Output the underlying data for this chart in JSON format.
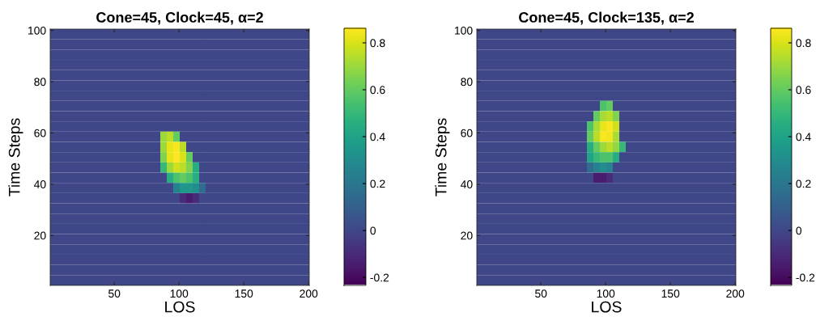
{
  "chart_data": [
    {
      "type": "heatmap",
      "title": "Cone=45, Clock=45, α=2",
      "xlabel": "LOS",
      "ylabel": "Time Steps",
      "xlim": [
        0.5,
        200.5
      ],
      "ylim": [
        0.5,
        100.5
      ],
      "xticks": [
        50,
        100,
        150,
        200
      ],
      "yticks": [
        20,
        40,
        60,
        80,
        100
      ],
      "clim": [
        -0.234,
        0.862
      ],
      "cticks": [
        -0.2,
        0,
        0.2,
        0.4,
        0.6,
        0.8
      ],
      "cells": [
        [
          0,
          0,
          0,
          0,
          0,
          0,
          0,
          0,
          0,
          0,
          0,
          0,
          0,
          0,
          0,
          0,
          0,
          0,
          0,
          0,
          0,
          0,
          0,
          0,
          0,
          0,
          0,
          0,
          0,
          0,
          0,
          0,
          0,
          0,
          0,
          0,
          0,
          0,
          0,
          0
        ],
        [
          0,
          0,
          0,
          0,
          0,
          0,
          0,
          0,
          0,
          0,
          0,
          0,
          0,
          0,
          0,
          0,
          0,
          0,
          0,
          0,
          0,
          0,
          0,
          0,
          0,
          0,
          0,
          0,
          0,
          0,
          0,
          0,
          0,
          0,
          0,
          0,
          0,
          0,
          0,
          0
        ],
        [
          0,
          0,
          0,
          0,
          0,
          0,
          0,
          0,
          0,
          0,
          0,
          0,
          0,
          0,
          0,
          0,
          0,
          0,
          0,
          0,
          0,
          0,
          0,
          0,
          0,
          0,
          0,
          0,
          0,
          0,
          0,
          0,
          0,
          0,
          0,
          0,
          0,
          0,
          0,
          0
        ],
        [
          0,
          0,
          0,
          0,
          0,
          0,
          0,
          0,
          0,
          0,
          0,
          0,
          0,
          0,
          0,
          0,
          0,
          0,
          0,
          0,
          0,
          0,
          0,
          0,
          0,
          0,
          0,
          0,
          0,
          0,
          0,
          0,
          0,
          0,
          0,
          0,
          0,
          0,
          0,
          0
        ],
        [
          0,
          0,
          0,
          0,
          0,
          0,
          0,
          0,
          0,
          0,
          0,
          0,
          0,
          0,
          0,
          0,
          0,
          0,
          0,
          0,
          0,
          0,
          0,
          0,
          0,
          0,
          0,
          0,
          0,
          0,
          0,
          0,
          0,
          0,
          0,
          0,
          0,
          0,
          0,
          0
        ],
        [
          0,
          0,
          0,
          0,
          0,
          0,
          0,
          0,
          0,
          0,
          0,
          0,
          0,
          0,
          0,
          0,
          0,
          0,
          0,
          0,
          0,
          0,
          0,
          0,
          0,
          0,
          0,
          0,
          0,
          0,
          0,
          0,
          0,
          0,
          0,
          0,
          0,
          0,
          0,
          0
        ],
        [
          0,
          0,
          0,
          0,
          0,
          0,
          0,
          0,
          0,
          0,
          0,
          0,
          0,
          0,
          0,
          0,
          0,
          0,
          0,
          0,
          0,
          0,
          0,
          0,
          0,
          0,
          0,
          0,
          0,
          0,
          0,
          0,
          0,
          0,
          0,
          0,
          0,
          0,
          0,
          0
        ],
        [
          0,
          0,
          0,
          0,
          0,
          0,
          0,
          0,
          0,
          0,
          0,
          0,
          0,
          0,
          0,
          0,
          0,
          0,
          0,
          0,
          0,
          0,
          0,
          0,
          0,
          0,
          0,
          0,
          0,
          0,
          0,
          0,
          0,
          0,
          0,
          0,
          0,
          0,
          0,
          0
        ],
        [
          0,
          0,
          0,
          0,
          0,
          0,
          0,
          0,
          0,
          0,
          0,
          0,
          0,
          0,
          0,
          0,
          0,
          0,
          0,
          0,
          0,
          0,
          0,
          0,
          0,
          0,
          0,
          0,
          0,
          0,
          0,
          0,
          0,
          0,
          0,
          0,
          0,
          0,
          0,
          0
        ],
        [
          0,
          0,
          0,
          0,
          0,
          0,
          0,
          0,
          0,
          0,
          0,
          0,
          0,
          0,
          0,
          0,
          0,
          0,
          0,
          0,
          0,
          0,
          0,
          0,
          0,
          0,
          0,
          0,
          0,
          0,
          0,
          0,
          0,
          0,
          0,
          0,
          0,
          0,
          0,
          0
        ],
        [
          0,
          0,
          0,
          0,
          0,
          0,
          0,
          0,
          0,
          0,
          0,
          0,
          0,
          0,
          0,
          0,
          0,
          0.7,
          0.75,
          0.6,
          0,
          0,
          0,
          0,
          0,
          0,
          0,
          0,
          0,
          0,
          0,
          0,
          0,
          0,
          0,
          0,
          0,
          0,
          0,
          0
        ],
        [
          0,
          0,
          0,
          0,
          0,
          0,
          0,
          0,
          0,
          0,
          0,
          0,
          0,
          0,
          0,
          0,
          0,
          0.7,
          0.82,
          0.85,
          0.75,
          0,
          0,
          0,
          0,
          0,
          0,
          0,
          0,
          0,
          0,
          0,
          0,
          0,
          0,
          0,
          0,
          0,
          0,
          0
        ],
        [
          0,
          0,
          0,
          0,
          0,
          0,
          0,
          0,
          0,
          0,
          0,
          0,
          0,
          0,
          0,
          0,
          0,
          0.65,
          0.82,
          0.86,
          0.8,
          0.6,
          0,
          0,
          0,
          0,
          0,
          0,
          0,
          0,
          0,
          0,
          0,
          0,
          0,
          0,
          0,
          0,
          0,
          0
        ],
        [
          0,
          0,
          0,
          0,
          0,
          0,
          0,
          0,
          0,
          0,
          0,
          0,
          0,
          0,
          0,
          0,
          0,
          0.5,
          0.7,
          0.78,
          0.75,
          0.65,
          0.45,
          0,
          0,
          0,
          0,
          0,
          0,
          0,
          0,
          0,
          0,
          0,
          0,
          0,
          0,
          0,
          0,
          0
        ],
        [
          0,
          0,
          0,
          0,
          0,
          0,
          0,
          0,
          0,
          0,
          0,
          0,
          0,
          0,
          0,
          0,
          0,
          0,
          0.45,
          0.55,
          0.6,
          0.55,
          0.45,
          0,
          0,
          0,
          0,
          0,
          0,
          0,
          0,
          0,
          0,
          0,
          0,
          0,
          0,
          0,
          0,
          0
        ],
        [
          0,
          0,
          0,
          0,
          0,
          0,
          0,
          0,
          0,
          0,
          0,
          0,
          0,
          0,
          0,
          0,
          0,
          0,
          0,
          0.25,
          0.35,
          0.35,
          0.3,
          0.15,
          0,
          0,
          0,
          0,
          0,
          0,
          0,
          0,
          0,
          0,
          0,
          0,
          0,
          0,
          0,
          0
        ],
        [
          0,
          0,
          0,
          0,
          0,
          0,
          0,
          0,
          0,
          0,
          0,
          0,
          0,
          0,
          0,
          0,
          0,
          0,
          0,
          0,
          -0.1,
          -0.15,
          -0.1,
          0,
          0,
          0,
          0,
          0,
          0,
          0,
          0,
          0,
          0,
          0,
          0,
          0,
          0,
          0,
          0,
          0
        ],
        [
          0,
          0,
          0,
          0,
          0,
          0,
          0,
          0,
          0,
          0,
          0,
          0,
          0,
          0,
          0,
          0,
          0,
          0,
          0,
          0,
          0,
          0,
          0,
          0,
          0,
          0,
          0,
          0,
          0,
          0,
          0,
          0,
          0,
          0,
          0,
          0,
          0,
          0,
          0,
          0
        ],
        [
          0,
          0,
          0,
          0,
          0,
          0,
          0,
          0,
          0,
          0,
          0,
          0,
          0,
          0,
          0,
          0,
          0,
          0,
          0,
          0,
          0,
          0,
          0,
          0,
          0,
          0,
          0,
          0,
          0,
          0,
          0,
          0,
          0,
          0,
          0,
          0,
          0,
          0,
          0,
          0
        ],
        [
          0,
          0,
          0,
          0,
          0,
          0,
          0,
          0,
          0,
          0,
          0,
          0,
          0,
          0,
          0,
          0,
          0,
          0,
          0,
          0,
          0,
          0,
          0,
          0,
          0,
          0,
          0,
          0,
          0,
          0,
          0,
          0,
          0,
          0,
          0,
          0,
          0,
          0,
          0,
          0
        ],
        [
          0,
          0,
          0,
          0,
          0,
          0,
          0,
          0,
          0,
          0,
          0,
          0,
          0,
          0,
          0,
          0,
          0,
          0,
          0,
          0,
          0,
          0,
          0,
          0,
          0,
          0,
          0,
          0,
          0,
          0,
          0,
          0,
          0,
          0,
          0,
          0,
          0,
          0,
          0,
          0
        ],
        [
          0,
          0,
          0,
          0,
          0,
          0,
          0,
          0,
          0,
          0,
          0,
          0,
          0,
          0,
          0,
          0,
          0,
          0,
          0,
          0,
          0,
          0,
          0,
          0,
          0,
          0,
          0,
          0,
          0,
          0,
          0,
          0,
          0,
          0,
          0,
          0,
          0,
          0,
          0,
          0
        ],
        [
          0,
          0,
          0,
          0,
          0,
          0,
          0,
          0,
          0,
          0,
          0,
          0,
          0,
          0,
          0,
          0,
          0,
          0,
          0,
          0,
          0,
          0,
          0,
          0,
          0,
          0,
          0,
          0,
          0,
          0,
          0,
          0,
          0,
          0,
          0,
          0,
          0,
          0,
          0,
          0
        ],
        [
          0,
          0,
          0,
          0,
          0,
          0,
          0,
          0,
          0,
          0,
          0,
          0,
          0,
          0,
          0,
          0,
          0,
          0,
          0,
          0,
          0,
          0,
          0,
          0,
          0,
          0,
          0,
          0,
          0,
          0,
          0,
          0,
          0,
          0,
          0,
          0,
          0,
          0,
          0,
          0
        ],
        [
          0,
          0,
          0,
          0,
          0,
          0,
          0,
          0,
          0,
          0,
          0,
          0,
          0,
          0,
          0,
          0,
          0,
          0,
          0,
          0,
          0,
          0,
          0,
          0,
          0,
          0,
          0,
          0,
          0,
          0,
          0,
          0,
          0,
          0,
          0,
          0,
          0,
          0,
          0,
          0
        ]
      ]
    },
    {
      "type": "heatmap",
      "title": "Cone=45, Clock=135, α=2",
      "xlabel": "LOS",
      "ylabel": "Time Steps",
      "xlim": [
        0.5,
        200.5
      ],
      "ylim": [
        0.5,
        100.5
      ],
      "xticks": [
        50,
        100,
        150,
        200
      ],
      "yticks": [
        20,
        40,
        60,
        80,
        100
      ],
      "clim": [
        -0.234,
        0.862
      ],
      "cticks": [
        -0.2,
        0,
        0.2,
        0.4,
        0.6,
        0.8
      ],
      "cells": [
        [
          0,
          0,
          0,
          0,
          0,
          0,
          0,
          0,
          0,
          0,
          0,
          0,
          0,
          0,
          0,
          0,
          0,
          0,
          0,
          0,
          0,
          0,
          0,
          0,
          0,
          0,
          0,
          0,
          0,
          0,
          0,
          0,
          0,
          0,
          0,
          0,
          0,
          0,
          0,
          0
        ],
        [
          0,
          0,
          0,
          0,
          0,
          0,
          0,
          0,
          0,
          0,
          0,
          0,
          0,
          0,
          0,
          0,
          0,
          0,
          0,
          0,
          0,
          0,
          0,
          0,
          0,
          0,
          0,
          0,
          0,
          0,
          0,
          0,
          0,
          0,
          0,
          0,
          0,
          0,
          0,
          0
        ],
        [
          0,
          0,
          0,
          0,
          0,
          0,
          0,
          0,
          0,
          0,
          0,
          0,
          0,
          0,
          0,
          0,
          0,
          0,
          0,
          0,
          0,
          0,
          0,
          0,
          0,
          0,
          0,
          0,
          0,
          0,
          0,
          0,
          0,
          0,
          0,
          0,
          0,
          0,
          0,
          0
        ],
        [
          0,
          0,
          0,
          0,
          0,
          0,
          0,
          0,
          0,
          0,
          0,
          0,
          0,
          0,
          0,
          0,
          0,
          0,
          0,
          0,
          0,
          0,
          0,
          0,
          0,
          0,
          0,
          0,
          0,
          0,
          0,
          0,
          0,
          0,
          0,
          0,
          0,
          0,
          0,
          0
        ],
        [
          0,
          0,
          0,
          0,
          0,
          0,
          0,
          0,
          0,
          0,
          0,
          0,
          0,
          0,
          0,
          0,
          0,
          0,
          0,
          0,
          0,
          0,
          0,
          0,
          0,
          0,
          0,
          0,
          0,
          0,
          0,
          0,
          0,
          0,
          0,
          0,
          0,
          0,
          0,
          0
        ],
        [
          0,
          0,
          0,
          0,
          0,
          0,
          0,
          0,
          0,
          0,
          0,
          0,
          0,
          0,
          0,
          0,
          0,
          0,
          0,
          0,
          0,
          0,
          0,
          0,
          0,
          0,
          0,
          0,
          0,
          0,
          0,
          0,
          0,
          0,
          0,
          0,
          0,
          0,
          0,
          0
        ],
        [
          0,
          0,
          0,
          0,
          0,
          0,
          0,
          0,
          0,
          0,
          0,
          0,
          0,
          0,
          0,
          0,
          0,
          0,
          0,
          0,
          0,
          0,
          0,
          0,
          0,
          0,
          0,
          0,
          0,
          0,
          0,
          0,
          0,
          0,
          0,
          0,
          0,
          0,
          0,
          0
        ],
        [
          0,
          0,
          0,
          0,
          0,
          0,
          0,
          0,
          0,
          0,
          0,
          0,
          0,
          0,
          0,
          0,
          0,
          0,
          0,
          0.55,
          0.6,
          0,
          0,
          0,
          0,
          0,
          0,
          0,
          0,
          0,
          0,
          0,
          0,
          0,
          0,
          0,
          0,
          0,
          0,
          0
        ],
        [
          0,
          0,
          0,
          0,
          0,
          0,
          0,
          0,
          0,
          0,
          0,
          0,
          0,
          0,
          0,
          0,
          0,
          0,
          0.6,
          0.72,
          0.75,
          0.65,
          0,
          0,
          0,
          0,
          0,
          0,
          0,
          0,
          0,
          0,
          0,
          0,
          0,
          0,
          0,
          0,
          0,
          0
        ],
        [
          0,
          0,
          0,
          0,
          0,
          0,
          0,
          0,
          0,
          0,
          0,
          0,
          0,
          0,
          0,
          0,
          0,
          0.55,
          0.72,
          0.82,
          0.85,
          0.78,
          0,
          0,
          0,
          0,
          0,
          0,
          0,
          0,
          0,
          0,
          0,
          0,
          0,
          0,
          0,
          0,
          0,
          0
        ],
        [
          0,
          0,
          0,
          0,
          0,
          0,
          0,
          0,
          0,
          0,
          0,
          0,
          0,
          0,
          0,
          0,
          0,
          0.6,
          0.75,
          0.85,
          0.84,
          0.72,
          0,
          0,
          0,
          0,
          0,
          0,
          0,
          0,
          0,
          0,
          0,
          0,
          0,
          0,
          0,
          0,
          0,
          0
        ],
        [
          0,
          0,
          0,
          0,
          0,
          0,
          0,
          0,
          0,
          0,
          0,
          0,
          0,
          0,
          0,
          0,
          0,
          0.45,
          0.6,
          0.7,
          0.75,
          0.68,
          0.5,
          0,
          0,
          0,
          0,
          0,
          0,
          0,
          0,
          0,
          0,
          0,
          0,
          0,
          0,
          0,
          0,
          0
        ],
        [
          0,
          0,
          0,
          0,
          0,
          0,
          0,
          0,
          0,
          0,
          0,
          0,
          0,
          0,
          0,
          0,
          0,
          0.4,
          0.5,
          0.55,
          0.55,
          0.45,
          0,
          0,
          0,
          0,
          0,
          0,
          0,
          0,
          0,
          0,
          0,
          0,
          0,
          0,
          0,
          0,
          0,
          0
        ],
        [
          0,
          0,
          0,
          0,
          0,
          0,
          0,
          0,
          0,
          0,
          0,
          0,
          0,
          0,
          0,
          0,
          0,
          0.15,
          0.25,
          0.3,
          0.25,
          0,
          0,
          0,
          0,
          0,
          0,
          0,
          0,
          0,
          0,
          0,
          0,
          0,
          0,
          0,
          0,
          0,
          0,
          0
        ],
        [
          0,
          0,
          0,
          0,
          0,
          0,
          0,
          0,
          0,
          0,
          0,
          0,
          0,
          0,
          0,
          0,
          0,
          0,
          -0.15,
          -0.15,
          -0.1,
          0,
          0,
          0,
          0,
          0,
          0,
          0,
          0,
          0,
          0,
          0,
          0,
          0,
          0,
          0,
          0,
          0,
          0,
          0
        ],
        [
          0,
          0,
          0,
          0,
          0,
          0,
          0,
          0,
          0,
          0,
          0,
          0,
          0,
          0,
          0,
          0,
          0,
          0,
          0,
          0,
          0,
          0,
          0,
          0,
          0,
          0,
          0,
          0,
          0,
          0,
          0,
          0,
          0,
          0,
          0,
          0,
          0,
          0,
          0,
          0
        ],
        [
          0,
          0,
          0,
          0,
          0,
          0,
          0,
          0,
          0,
          0,
          0,
          0,
          0,
          0,
          0,
          0,
          0,
          0,
          0,
          0,
          0,
          0,
          0,
          0,
          0,
          0,
          0,
          0,
          0,
          0,
          0,
          0,
          0,
          0,
          0,
          0,
          0,
          0,
          0,
          0
        ],
        [
          0,
          0,
          0,
          0,
          0,
          0,
          0,
          0,
          0,
          0,
          0,
          0,
          0,
          0,
          0,
          0,
          0,
          0,
          0,
          0,
          0,
          0,
          0,
          0,
          0,
          0,
          0,
          0,
          0,
          0,
          0,
          0,
          0,
          0,
          0,
          0,
          0,
          0,
          0,
          0
        ],
        [
          0,
          0,
          0,
          0,
          0,
          0,
          0,
          0,
          0,
          0,
          0,
          0,
          0,
          0,
          0,
          0,
          0,
          0,
          0,
          0,
          0,
          0,
          0,
          0,
          0,
          0,
          0,
          0,
          0,
          0,
          0,
          0,
          0,
          0,
          0,
          0,
          0,
          0,
          0,
          0
        ],
        [
          0,
          0,
          0,
          0,
          0,
          0,
          0,
          0,
          0,
          0,
          0,
          0,
          0,
          0,
          0,
          0,
          0,
          0,
          0,
          0,
          0,
          0,
          0,
          0,
          0,
          0,
          0,
          0,
          0,
          0,
          0,
          0,
          0,
          0,
          0,
          0,
          0,
          0,
          0,
          0
        ],
        [
          0,
          0,
          0,
          0,
          0,
          0,
          0,
          0,
          0,
          0,
          0,
          0,
          0,
          0,
          0,
          0,
          0,
          0,
          0,
          0,
          0,
          0,
          0,
          0,
          0,
          0,
          0,
          0,
          0,
          0,
          0,
          0,
          0,
          0,
          0,
          0,
          0,
          0,
          0,
          0
        ],
        [
          0,
          0,
          0,
          0,
          0,
          0,
          0,
          0,
          0,
          0,
          0,
          0,
          0,
          0,
          0,
          0,
          0,
          0,
          0,
          0,
          0,
          0,
          0,
          0,
          0,
          0,
          0,
          0,
          0,
          0,
          0,
          0,
          0,
          0,
          0,
          0,
          0,
          0,
          0,
          0
        ],
        [
          0,
          0,
          0,
          0,
          0,
          0,
          0,
          0,
          0,
          0,
          0,
          0,
          0,
          0,
          0,
          0,
          0,
          0,
          0,
          0,
          0,
          0,
          0,
          0,
          0,
          0,
          0,
          0,
          0,
          0,
          0,
          0,
          0,
          0,
          0,
          0,
          0,
          0,
          0,
          0
        ],
        [
          0,
          0,
          0,
          0,
          0,
          0,
          0,
          0,
          0,
          0,
          0,
          0,
          0,
          0,
          0,
          0,
          0,
          0,
          0,
          0,
          0,
          0,
          0,
          0,
          0,
          0,
          0,
          0,
          0,
          0,
          0,
          0,
          0,
          0,
          0,
          0,
          0,
          0,
          0,
          0
        ],
        [
          0,
          0,
          0,
          0,
          0,
          0,
          0,
          0,
          0,
          0,
          0,
          0,
          0,
          0,
          0,
          0,
          0,
          0,
          0,
          0,
          0,
          0,
          0,
          0,
          0,
          0,
          0,
          0,
          0,
          0,
          0,
          0,
          0,
          0,
          0,
          0,
          0,
          0,
          0,
          0
        ]
      ]
    }
  ]
}
